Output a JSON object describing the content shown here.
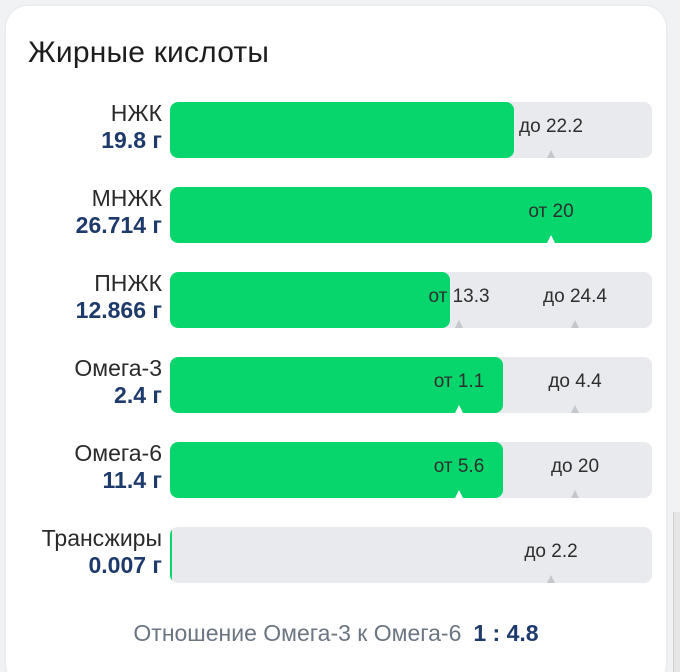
{
  "title": "Жирные кислоты",
  "rows": [
    {
      "name": "НЖК",
      "amount": "19.8 г",
      "fill": 0.714,
      "markers": [
        {
          "text": "до 22.2",
          "pos": 0.79
        }
      ]
    },
    {
      "name": "МНЖК",
      "amount": "26.714 г",
      "fill": 1.0,
      "markers": [
        {
          "text": "от 20",
          "pos": 0.79
        }
      ]
    },
    {
      "name": "ПНЖК",
      "amount": "12.866 г",
      "fill": 0.58,
      "markers": [
        {
          "text": "от 13.3",
          "pos": 0.6
        },
        {
          "text": "до 24.4",
          "pos": 0.84
        }
      ]
    },
    {
      "name": "Омега-3",
      "amount": "2.4 г",
      "fill": 0.69,
      "markers": [
        {
          "text": "от 1.1",
          "pos": 0.6
        },
        {
          "text": "до 4.4",
          "pos": 0.84
        }
      ]
    },
    {
      "name": "Омега-6",
      "amount": "11.4 г",
      "fill": 0.69,
      "markers": [
        {
          "text": "от 5.6",
          "pos": 0.6
        },
        {
          "text": "до 20",
          "pos": 0.84
        }
      ]
    },
    {
      "name": "Трансжиры",
      "amount": "0.007 г",
      "fill": 0.005,
      "markers": [
        {
          "text": "до 2.2",
          "pos": 0.79
        }
      ]
    }
  ],
  "ratio": {
    "label": "Отношение Омега-3 к Омега-6",
    "value": "1 : 4.8"
  },
  "colors": {
    "fill": "#06d66b",
    "track": "#e8eaed",
    "amount": "#1e3a6b"
  }
}
